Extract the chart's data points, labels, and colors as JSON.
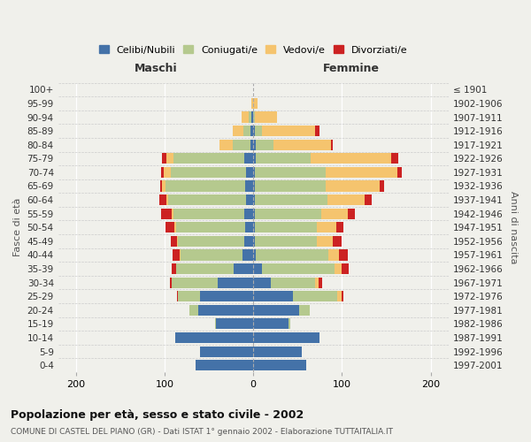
{
  "age_groups": [
    "0-4",
    "5-9",
    "10-14",
    "15-19",
    "20-24",
    "25-29",
    "30-34",
    "35-39",
    "40-44",
    "45-49",
    "50-54",
    "55-59",
    "60-64",
    "65-69",
    "70-74",
    "75-79",
    "80-84",
    "85-89",
    "90-94",
    "95-99",
    "100+"
  ],
  "birth_years": [
    "1997-2001",
    "1992-1996",
    "1987-1991",
    "1982-1986",
    "1977-1981",
    "1972-1976",
    "1967-1971",
    "1962-1966",
    "1957-1961",
    "1952-1956",
    "1947-1951",
    "1942-1946",
    "1937-1941",
    "1932-1936",
    "1927-1931",
    "1922-1926",
    "1917-1921",
    "1912-1916",
    "1907-1911",
    "1902-1906",
    "≤ 1901"
  ],
  "males": {
    "celibi": [
      65,
      60,
      88,
      42,
      62,
      60,
      40,
      22,
      12,
      10,
      9,
      10,
      8,
      9,
      8,
      10,
      3,
      3,
      2,
      0,
      0
    ],
    "coniugati": [
      0,
      0,
      0,
      1,
      10,
      25,
      52,
      65,
      70,
      75,
      78,
      80,
      88,
      90,
      85,
      80,
      20,
      8,
      3,
      0,
      0
    ],
    "vedovi": [
      0,
      0,
      0,
      0,
      0,
      0,
      0,
      0,
      1,
      1,
      2,
      2,
      2,
      4,
      8,
      8,
      15,
      12,
      8,
      2,
      0
    ],
    "divorziati": [
      0,
      0,
      0,
      0,
      0,
      1,
      2,
      5,
      8,
      7,
      10,
      12,
      8,
      2,
      3,
      5,
      0,
      0,
      0,
      0,
      0
    ]
  },
  "females": {
    "nubili": [
      60,
      55,
      75,
      40,
      52,
      45,
      20,
      10,
      3,
      2,
      2,
      2,
      2,
      2,
      2,
      3,
      3,
      2,
      0,
      0,
      0
    ],
    "coniugate": [
      0,
      0,
      0,
      2,
      12,
      50,
      50,
      82,
      82,
      70,
      70,
      75,
      82,
      80,
      80,
      62,
      20,
      8,
      2,
      0,
      0
    ],
    "vedove": [
      0,
      0,
      0,
      0,
      0,
      5,
      4,
      8,
      12,
      18,
      22,
      30,
      42,
      60,
      80,
      90,
      65,
      60,
      25,
      5,
      0
    ],
    "divorziate": [
      0,
      0,
      0,
      0,
      0,
      2,
      4,
      8,
      10,
      10,
      8,
      8,
      7,
      5,
      5,
      8,
      2,
      5,
      0,
      0,
      0
    ]
  },
  "colors": {
    "celibi": "#4472a8",
    "coniugati": "#b5c98e",
    "vedovi": "#f5c46e",
    "divorziati": "#cc2222"
  },
  "xlim": 220,
  "title": "Popolazione per età, sesso e stato civile - 2002",
  "subtitle": "COMUNE DI CASTEL DEL PIANO (GR) - Dati ISTAT 1° gennaio 2002 - Elaborazione TUTTAITALIA.IT",
  "xlabel_left": "Maschi",
  "xlabel_right": "Femmine",
  "ylabel_left": "Fasce di età",
  "ylabel_right": "Anni di nascita",
  "legend_labels": [
    "Celibi/Nubili",
    "Coniugati/e",
    "Vedovi/e",
    "Divorziati/e"
  ],
  "background_color": "#f0f0eb"
}
